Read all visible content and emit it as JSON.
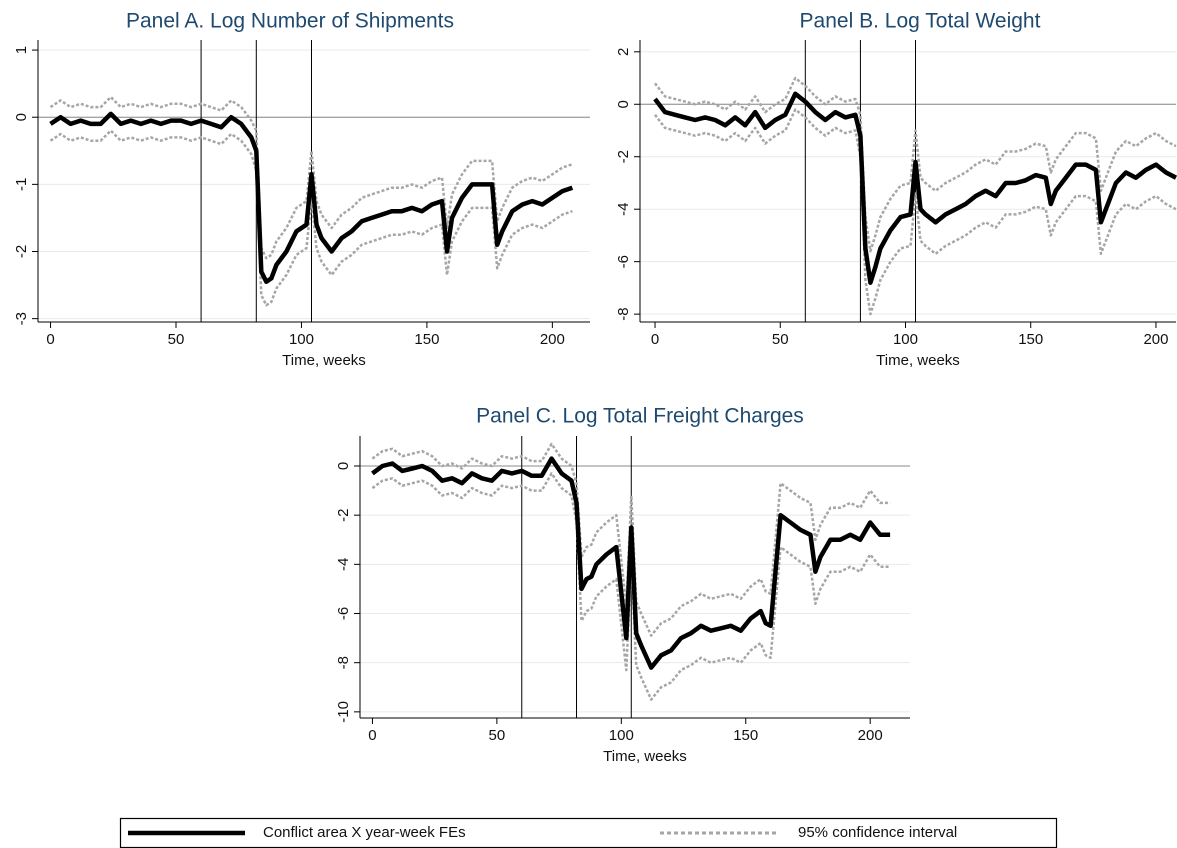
{
  "chart_data": [
    {
      "type": "line",
      "title": "Panel A. Log Number of Shipments",
      "xlabel": "Time, weeks",
      "x": [
        0,
        4,
        8,
        12,
        16,
        20,
        24,
        28,
        32,
        36,
        40,
        44,
        48,
        52,
        56,
        60,
        64,
        68,
        72,
        76,
        80,
        82,
        84,
        86,
        88,
        90,
        94,
        98,
        102,
        104,
        106,
        108,
        112,
        116,
        120,
        124,
        128,
        132,
        136,
        140,
        144,
        148,
        152,
        156,
        158,
        160,
        164,
        168,
        172,
        176,
        178,
        180,
        184,
        188,
        192,
        196,
        200,
        204,
        208
      ],
      "values": [
        -0.1,
        0,
        -0.1,
        -0.05,
        -0.1,
        -0.1,
        0.05,
        -0.1,
        -0.05,
        -0.1,
        -0.05,
        -0.1,
        -0.05,
        -0.05,
        -0.1,
        -0.05,
        -0.1,
        -0.15,
        0,
        -0.1,
        -0.3,
        -0.5,
        -2.3,
        -2.45,
        -2.4,
        -2.2,
        -2.0,
        -1.7,
        -1.6,
        -0.85,
        -1.6,
        -1.8,
        -2.0,
        -1.8,
        -1.7,
        -1.55,
        -1.5,
        -1.45,
        -1.4,
        -1.4,
        -1.35,
        -1.4,
        -1.3,
        -1.25,
        -2.0,
        -1.5,
        -1.2,
        -1.0,
        -1.0,
        -1.0,
        -1.9,
        -1.7,
        -1.4,
        -1.3,
        -1.25,
        -1.3,
        -1.2,
        -1.1,
        -1.05
      ],
      "ci_upper": [
        0.15,
        0.25,
        0.15,
        0.2,
        0.15,
        0.15,
        0.3,
        0.15,
        0.2,
        0.15,
        0.2,
        0.15,
        0.2,
        0.2,
        0.15,
        0.2,
        0.15,
        0.1,
        0.25,
        0.15,
        -0.05,
        -0.2,
        -1.95,
        -2.1,
        -2.05,
        -1.85,
        -1.65,
        -1.35,
        -1.25,
        -0.5,
        -1.25,
        -1.45,
        -1.65,
        -1.45,
        -1.35,
        -1.2,
        -1.15,
        -1.1,
        -1.05,
        -1.05,
        -1.0,
        -1.05,
        -0.95,
        -0.9,
        -1.65,
        -1.15,
        -0.85,
        -0.65,
        -0.65,
        -0.65,
        -1.55,
        -1.35,
        -1.05,
        -0.95,
        -0.9,
        -0.95,
        -0.85,
        -0.75,
        -0.7
      ],
      "ci_lower": [
        -0.35,
        -0.25,
        -0.35,
        -0.3,
        -0.35,
        -0.35,
        -0.2,
        -0.35,
        -0.3,
        -0.35,
        -0.3,
        -0.35,
        -0.3,
        -0.3,
        -0.35,
        -0.3,
        -0.35,
        -0.4,
        -0.25,
        -0.35,
        -0.55,
        -0.8,
        -2.65,
        -2.8,
        -2.75,
        -2.55,
        -2.35,
        -2.05,
        -1.95,
        -1.2,
        -1.95,
        -2.15,
        -2.35,
        -2.15,
        -2.05,
        -1.9,
        -1.85,
        -1.8,
        -1.75,
        -1.75,
        -1.7,
        -1.75,
        -1.65,
        -1.6,
        -2.35,
        -1.85,
        -1.55,
        -1.35,
        -1.35,
        -1.35,
        -2.25,
        -2.05,
        -1.75,
        -1.65,
        -1.6,
        -1.65,
        -1.55,
        -1.45,
        -1.4
      ],
      "xlim": [
        -5,
        215
      ],
      "ylim": [
        -3.05,
        1.15
      ],
      "xticks": [
        0,
        50,
        100,
        150,
        200
      ],
      "yticks": [
        -3,
        -2,
        -1,
        0,
        1
      ],
      "vlines": [
        60,
        82,
        104
      ],
      "hline": 0,
      "grid": true
    },
    {
      "type": "line",
      "title": "Panel B. Log Total Weight",
      "xlabel": "Time, weeks",
      "x": [
        0,
        4,
        8,
        12,
        16,
        20,
        24,
        28,
        32,
        36,
        40,
        44,
        48,
        52,
        56,
        60,
        64,
        68,
        72,
        76,
        80,
        82,
        84,
        86,
        88,
        90,
        94,
        98,
        102,
        104,
        106,
        108,
        112,
        116,
        120,
        124,
        128,
        132,
        136,
        140,
        144,
        148,
        152,
        156,
        158,
        160,
        164,
        168,
        172,
        176,
        178,
        180,
        184,
        188,
        192,
        196,
        200,
        204,
        208
      ],
      "values": [
        0.2,
        -0.3,
        -0.4,
        -0.5,
        -0.6,
        -0.5,
        -0.6,
        -0.8,
        -0.5,
        -0.8,
        -0.3,
        -0.9,
        -0.6,
        -0.4,
        0.4,
        0.1,
        -0.3,
        -0.6,
        -0.3,
        -0.5,
        -0.4,
        -1.2,
        -5.5,
        -6.8,
        -6.2,
        -5.5,
        -4.8,
        -4.3,
        -4.2,
        -2.2,
        -4.0,
        -4.2,
        -4.5,
        -4.2,
        -4.0,
        -3.8,
        -3.5,
        -3.3,
        -3.5,
        -3.0,
        -3.0,
        -2.9,
        -2.7,
        -2.8,
        -3.8,
        -3.3,
        -2.8,
        -2.3,
        -2.3,
        -2.5,
        -4.5,
        -4.0,
        -3.0,
        -2.6,
        -2.8,
        -2.5,
        -2.3,
        -2.6,
        -2.8
      ],
      "ci_upper": [
        0.8,
        0.3,
        0.2,
        0.1,
        0,
        0.1,
        0,
        -0.2,
        0.1,
        -0.2,
        0.3,
        -0.3,
        0,
        0.2,
        1.0,
        0.7,
        0.3,
        0,
        0.3,
        0.1,
        0.2,
        -0.4,
        -4.3,
        -5.6,
        -5.0,
        -4.3,
        -3.6,
        -3.1,
        -3.0,
        -1.0,
        -2.8,
        -3.0,
        -3.3,
        -3.0,
        -2.8,
        -2.6,
        -2.3,
        -2.1,
        -2.3,
        -1.8,
        -1.8,
        -1.7,
        -1.5,
        -1.6,
        -2.6,
        -2.1,
        -1.6,
        -1.1,
        -1.1,
        -1.3,
        -3.3,
        -2.8,
        -1.8,
        -1.4,
        -1.6,
        -1.3,
        -1.1,
        -1.4,
        -1.6
      ],
      "ci_lower": [
        -0.4,
        -0.9,
        -1.0,
        -1.1,
        -1.2,
        -1.1,
        -1.2,
        -1.4,
        -1.1,
        -1.4,
        -0.9,
        -1.5,
        -1.2,
        -1.0,
        -0.2,
        -0.5,
        -0.9,
        -1.2,
        -0.9,
        -1.1,
        -1.0,
        -2.0,
        -6.7,
        -8.0,
        -7.4,
        -6.7,
        -6.0,
        -5.5,
        -5.4,
        -3.4,
        -5.2,
        -5.4,
        -5.7,
        -5.4,
        -5.2,
        -5.0,
        -4.7,
        -4.5,
        -4.7,
        -4.2,
        -4.2,
        -4.1,
        -3.9,
        -4.0,
        -5.0,
        -4.5,
        -4.0,
        -3.5,
        -3.5,
        -3.7,
        -5.7,
        -5.2,
        -4.2,
        -3.8,
        -4.0,
        -3.7,
        -3.5,
        -3.8,
        -4.0
      ],
      "xlim": [
        -6,
        208
      ],
      "ylim": [
        -8.3,
        2.45
      ],
      "xticks": [
        0,
        50,
        100,
        150,
        200
      ],
      "yticks": [
        -8,
        -6,
        -4,
        -2,
        0,
        2
      ],
      "vlines": [
        60,
        82,
        104
      ],
      "hline": 0,
      "grid": true
    },
    {
      "type": "line",
      "title": "Panel C. Log Total Freight Charges",
      "xlabel": "Time, weeks",
      "x": [
        0,
        4,
        8,
        12,
        16,
        20,
        24,
        28,
        32,
        36,
        40,
        44,
        48,
        52,
        56,
        60,
        64,
        68,
        72,
        76,
        80,
        82,
        84,
        86,
        88,
        90,
        94,
        98,
        102,
        104,
        106,
        108,
        112,
        116,
        120,
        124,
        128,
        132,
        136,
        140,
        144,
        148,
        152,
        156,
        158,
        160,
        164,
        168,
        172,
        176,
        178,
        180,
        184,
        188,
        192,
        196,
        200,
        204,
        208
      ],
      "values": [
        -0.3,
        0,
        0.1,
        -0.2,
        -0.1,
        0,
        -0.2,
        -0.6,
        -0.5,
        -0.7,
        -0.3,
        -0.5,
        -0.6,
        -0.2,
        -0.3,
        -0.2,
        -0.4,
        -0.4,
        0.3,
        -0.3,
        -0.6,
        -1.5,
        -5.0,
        -4.6,
        -4.5,
        -4.0,
        -3.6,
        -3.3,
        -7.0,
        -2.5,
        -6.8,
        -7.3,
        -8.2,
        -7.7,
        -7.5,
        -7.0,
        -6.8,
        -6.5,
        -6.7,
        -6.6,
        -6.5,
        -6.7,
        -6.2,
        -5.9,
        -6.4,
        -6.5,
        -2.0,
        -2.3,
        -2.6,
        -2.8,
        -4.3,
        -3.7,
        -3.0,
        -3.0,
        -2.8,
        -3.0,
        -2.3,
        -2.8,
        -2.8
      ],
      "ci_upper": [
        0.3,
        0.6,
        0.7,
        0.4,
        0.5,
        0.6,
        0.4,
        0,
        0.1,
        -0.1,
        0.3,
        0.1,
        0,
        0.4,
        0.3,
        0.4,
        0.2,
        0.2,
        0.9,
        0.3,
        0,
        -0.7,
        -3.7,
        -3.3,
        -3.2,
        -2.7,
        -2.3,
        -2.0,
        -5.7,
        -1.2,
        -5.5,
        -6.0,
        -6.9,
        -6.4,
        -6.2,
        -5.7,
        -5.5,
        -5.2,
        -5.4,
        -5.3,
        -5.2,
        -5.4,
        -4.9,
        -4.6,
        -5.1,
        -5.2,
        -0.7,
        -1.0,
        -1.3,
        -1.5,
        -3.0,
        -2.4,
        -1.7,
        -1.7,
        -1.5,
        -1.7,
        -1.0,
        -1.5,
        -1.5
      ],
      "ci_lower": [
        -0.9,
        -0.6,
        -0.5,
        -0.8,
        -0.7,
        -0.6,
        -0.8,
        -1.2,
        -1.1,
        -1.3,
        -0.9,
        -1.1,
        -1.2,
        -0.8,
        -0.9,
        -0.8,
        -1.0,
        -1.0,
        -0.3,
        -0.9,
        -1.2,
        -2.3,
        -6.3,
        -5.9,
        -5.8,
        -5.3,
        -4.9,
        -4.6,
        -8.3,
        -3.8,
        -8.1,
        -8.6,
        -9.5,
        -9.0,
        -8.8,
        -8.3,
        -8.1,
        -7.8,
        -8.0,
        -7.9,
        -7.8,
        -8.0,
        -7.5,
        -7.2,
        -7.7,
        -7.8,
        -3.3,
        -3.6,
        -3.9,
        -4.1,
        -5.6,
        -5.0,
        -4.3,
        -4.3,
        -4.1,
        -4.3,
        -3.6,
        -4.1,
        -4.1
      ],
      "xlim": [
        -5,
        216
      ],
      "ylim": [
        -10.25,
        1.22
      ],
      "xticks": [
        0,
        50,
        100,
        150,
        200
      ],
      "yticks": [
        -10,
        -8,
        -6,
        -4,
        -2,
        0
      ],
      "vlines": [
        60,
        82,
        104
      ],
      "hline": 0,
      "grid": true
    }
  ],
  "legend": {
    "estimate": {
      "name": "Conflict area X year-week FEs",
      "color": "#000000"
    },
    "ci": {
      "name": "95% confidence interval",
      "color": "#a6a6a6"
    }
  }
}
